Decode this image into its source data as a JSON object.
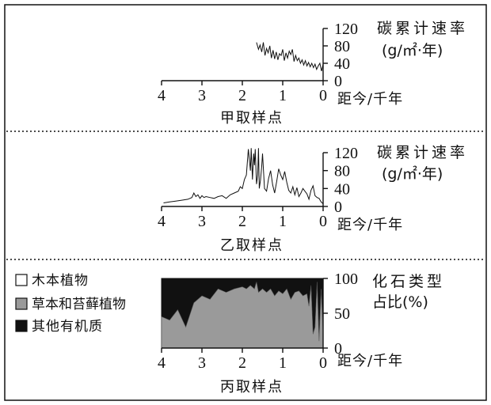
{
  "colors": {
    "ink": "#111111",
    "woody": "#ffffff",
    "herb": "#9a9a9a",
    "other": "#111111"
  },
  "chart_data": [
    {
      "type": "line",
      "caption": "甲取样点",
      "xlabel": "距今/千年",
      "ylabel_line1": "碳累计速率",
      "ylabel_line2": "(g/㎡·年)",
      "xticks": [
        "4",
        "3",
        "2",
        "1",
        "0"
      ],
      "yticks": [
        "0",
        "40",
        "80",
        "120"
      ],
      "xlim": [
        4,
        0
      ],
      "ylim": [
        0,
        120
      ],
      "series": [
        {
          "x": [
            1.65,
            1.6,
            1.56,
            1.52,
            1.48,
            1.44,
            1.4,
            1.36,
            1.32,
            1.28,
            1.24,
            1.2,
            1.16,
            1.12,
            1.08,
            1.04,
            1.0,
            0.96,
            0.92,
            0.88,
            0.84,
            0.8,
            0.76,
            0.72,
            0.68,
            0.64,
            0.6,
            0.56,
            0.52,
            0.48,
            0.44,
            0.4,
            0.36,
            0.32,
            0.28,
            0.24,
            0.2,
            0.16,
            0.12,
            0.08,
            0.04,
            0.0
          ],
          "y": [
            88,
            72,
            82,
            66,
            88,
            58,
            74,
            64,
            80,
            52,
            70,
            50,
            66,
            48,
            62,
            58,
            72,
            46,
            64,
            52,
            68,
            60,
            72,
            44,
            58,
            46,
            52,
            40,
            48,
            36,
            46,
            34,
            42,
            32,
            40,
            30,
            38,
            26,
            34,
            40,
            22,
            38
          ]
        }
      ]
    },
    {
      "type": "line",
      "caption": "乙取样点",
      "xlabel": "距今/千年",
      "ylabel_line1": "碳累计速率",
      "ylabel_line2": "(g/㎡·年)",
      "xticks": [
        "4",
        "3",
        "2",
        "1",
        "0"
      ],
      "yticks": [
        "0",
        "40",
        "80",
        "120"
      ],
      "xlim": [
        4,
        0
      ],
      "ylim": [
        0,
        120
      ],
      "series": [
        {
          "x": [
            3.95,
            3.8,
            3.65,
            3.5,
            3.35,
            3.25,
            3.2,
            3.15,
            3.1,
            3.05,
            3.0,
            2.95,
            2.9,
            2.8,
            2.7,
            2.6,
            2.5,
            2.4,
            2.3,
            2.2,
            2.1,
            2.05,
            2.0,
            1.95,
            1.9,
            1.85,
            1.8,
            1.78,
            1.75,
            1.72,
            1.7,
            1.68,
            1.65,
            1.62,
            1.6,
            1.58,
            1.55,
            1.52,
            1.5,
            1.45,
            1.4,
            1.35,
            1.3,
            1.25,
            1.2,
            1.15,
            1.1,
            1.05,
            1.0,
            0.95,
            0.9,
            0.85,
            0.8,
            0.75,
            0.7,
            0.65,
            0.6,
            0.55,
            0.5,
            0.45,
            0.4,
            0.35,
            0.3,
            0.25,
            0.2,
            0.15,
            0.1,
            0.05,
            0.0
          ],
          "y": [
            8,
            10,
            12,
            14,
            16,
            20,
            30,
            22,
            26,
            18,
            24,
            20,
            22,
            20,
            18,
            22,
            24,
            18,
            26,
            30,
            34,
            44,
            40,
            60,
            70,
            128,
            80,
            130,
            60,
            118,
            92,
            128,
            50,
            70,
            130,
            40,
            58,
            90,
            118,
            40,
            34,
            62,
            80,
            48,
            30,
            56,
            84,
            70,
            60,
            78,
            54,
            36,
            30,
            44,
            26,
            42,
            22,
            30,
            40,
            34,
            28,
            16,
            36,
            46,
            24,
            20,
            18,
            10,
            6
          ]
        }
      ]
    },
    {
      "type": "area",
      "caption": "丙取样点",
      "xlabel": "距今/千年",
      "ylabel_line1": "化石类型",
      "ylabel_line2": "占比(%)",
      "xticks": [
        "4",
        "3",
        "2",
        "1",
        "0"
      ],
      "yticks": [
        "0",
        "50",
        "100"
      ],
      "xlim": [
        4,
        0
      ],
      "ylim": [
        0,
        100
      ],
      "legend": [
        "木本植物",
        "草本和苔藓植物",
        "其他有机质"
      ],
      "x": [
        4.0,
        3.8,
        3.6,
        3.4,
        3.2,
        3.0,
        2.8,
        2.6,
        2.4,
        2.2,
        2.0,
        1.9,
        1.8,
        1.7,
        1.65,
        1.6,
        1.5,
        1.4,
        1.3,
        1.2,
        1.1,
        1.0,
        0.9,
        0.8,
        0.7,
        0.6,
        0.5,
        0.4,
        0.35,
        0.3,
        0.25,
        0.2,
        0.15,
        0.1,
        0.05,
        0.0
      ],
      "series": [
        {
          "name": "木本植物",
          "values": [
            0,
            0,
            0,
            0,
            0,
            0,
            0,
            0,
            0,
            0,
            0,
            0,
            0,
            0,
            0,
            0,
            0,
            0,
            0,
            0,
            0,
            0,
            0,
            0,
            0,
            0,
            0,
            0,
            0,
            0,
            0,
            0,
            0,
            0,
            0,
            0
          ]
        },
        {
          "name": "草本和苔藓植物",
          "values": [
            45,
            40,
            55,
            30,
            65,
            75,
            70,
            85,
            80,
            85,
            88,
            85,
            90,
            85,
            95,
            80,
            85,
            80,
            85,
            75,
            82,
            78,
            85,
            70,
            80,
            82,
            75,
            78,
            60,
            90,
            20,
            30,
            95,
            10,
            85,
            20
          ]
        },
        {
          "name": "其他有机质",
          "values": [
            55,
            60,
            45,
            70,
            35,
            25,
            30,
            15,
            20,
            15,
            12,
            15,
            10,
            15,
            5,
            20,
            15,
            20,
            15,
            25,
            18,
            22,
            15,
            30,
            20,
            18,
            25,
            22,
            40,
            10,
            80,
            70,
            5,
            90,
            15,
            80
          ]
        }
      ]
    }
  ]
}
